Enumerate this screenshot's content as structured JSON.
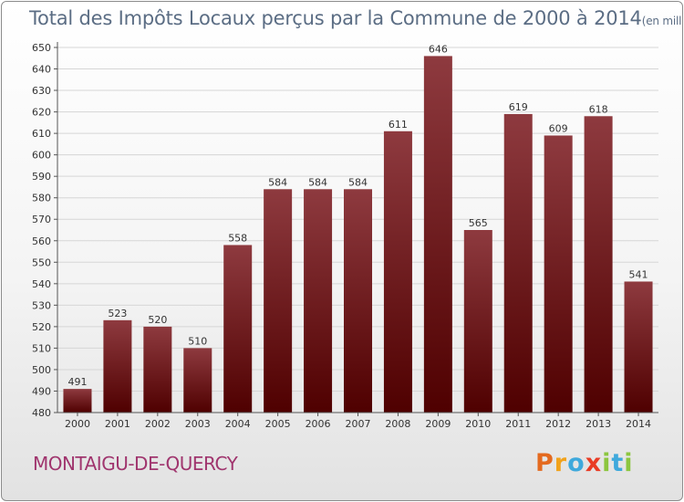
{
  "title": {
    "main": "Total des Impôts Locaux perçus par la Commune de 2000 à 2014",
    "unit": "(en milliers d'€)"
  },
  "commune": "MONTAIGU-DE-QUERCY",
  "brand": {
    "letters": [
      "P",
      "r",
      "o",
      "x",
      "i",
      "t",
      "i"
    ],
    "colors": [
      "#e46a1f",
      "#f1a21b",
      "#3fa9dc",
      "#e93c25",
      "#8cc63f",
      "#3fa9dc",
      "#8cc63f"
    ]
  },
  "colors": {
    "bar_top": "#8e3a3f",
    "bar_bottom": "#4f0000",
    "grid": "#d6d6d6",
    "axis": "#555555"
  },
  "chart_data": {
    "type": "bar",
    "title": "Total des Impôts Locaux perçus par la Commune de 2000 à 2014",
    "categories": [
      "2000",
      "2001",
      "2002",
      "2003",
      "2004",
      "2005",
      "2006",
      "2007",
      "2008",
      "2009",
      "2010",
      "2011",
      "2012",
      "2013",
      "2014"
    ],
    "values": [
      491,
      523,
      520,
      510,
      558,
      584,
      584,
      584,
      611,
      646,
      565,
      619,
      609,
      618,
      541
    ],
    "ylim": [
      480,
      650
    ],
    "yticks": [
      480,
      490,
      500,
      510,
      520,
      530,
      540,
      550,
      560,
      570,
      580,
      590,
      600,
      610,
      620,
      630,
      640,
      650
    ],
    "xlabel": "",
    "ylabel": "",
    "grid": true
  }
}
